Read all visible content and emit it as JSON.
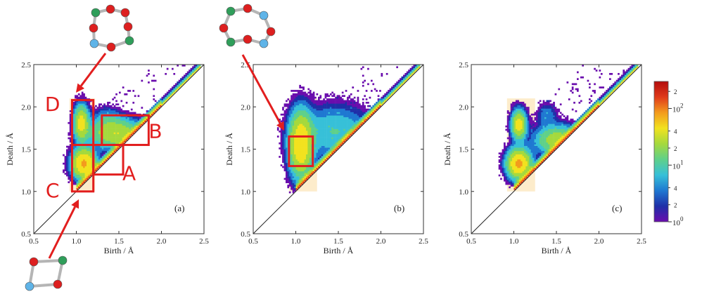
{
  "chart_data": [
    {
      "type": "heatmap",
      "panel_label": "(a)",
      "xlabel": "Birth / Å",
      "ylabel": "Death / Å",
      "xlim": [
        0.5,
        2.5
      ],
      "ylim": [
        0.5,
        2.5
      ],
      "xticks": [
        "0.5",
        "1.0",
        "1.5",
        "2.0",
        "2.5"
      ],
      "yticks": [
        "0.5",
        "1.0",
        "1.5",
        "2.0",
        "2.5"
      ],
      "diagonal": true,
      "shaded_band": {
        "x": [
          0.92,
          1.22
        ],
        "y": [
          1.0,
          2.1
        ]
      },
      "clusters": [
        {
          "x": 1.05,
          "y": 1.8,
          "sx": 0.05,
          "sy": 0.12,
          "peak": 40
        },
        {
          "x": 1.08,
          "y": 1.32,
          "sx": 0.08,
          "sy": 0.1,
          "peak": 60
        },
        {
          "x": 1.45,
          "y": 1.68,
          "sx": 0.18,
          "sy": 0.1,
          "peak": 30
        },
        {
          "x": 1.35,
          "y": 1.85,
          "sx": 0.1,
          "sy": 0.08,
          "peak": 6
        }
      ],
      "region_boxes": [
        {
          "label": "D",
          "x": [
            0.95,
            1.2
          ],
          "y": [
            1.55,
            2.08
          ],
          "label_x": 0.72,
          "label_y": 2.02
        },
        {
          "label": "B",
          "x": [
            1.3,
            1.85
          ],
          "y": [
            1.55,
            1.9
          ],
          "label_x": 1.93,
          "label_y": 1.7
        },
        {
          "label": "A",
          "x": [
            1.2,
            1.55
          ],
          "y": [
            1.2,
            1.55
          ],
          "label_x": 1.62,
          "label_y": 1.2
        },
        {
          "label": "C",
          "x": [
            0.95,
            1.2
          ],
          "y": [
            1.0,
            1.55
          ],
          "label_x": 0.72,
          "label_y": 1.0
        }
      ]
    },
    {
      "type": "heatmap",
      "panel_label": "(b)",
      "xlabel": "Birth / Å",
      "ylabel": "Death / Å",
      "xlim": [
        0.5,
        2.5
      ],
      "ylim": [
        0.5,
        2.5
      ],
      "xticks": [
        "0.5",
        "1.0",
        "1.5",
        "2.0",
        "2.5"
      ],
      "yticks": [
        "0.5",
        "1.0",
        "1.5",
        "2.0",
        "2.5"
      ],
      "diagonal": true,
      "shaded_band": {
        "x": [
          0.92,
          1.25
        ],
        "y": [
          1.0,
          2.1
        ]
      },
      "clusters": [
        {
          "x": 1.05,
          "y": 1.55,
          "sx": 0.08,
          "sy": 0.22,
          "peak": 50
        },
        {
          "x": 1.45,
          "y": 1.7,
          "sx": 0.25,
          "sy": 0.18,
          "peak": 10
        }
      ],
      "region_boxes": [
        {
          "label": "",
          "x": [
            0.92,
            1.2
          ],
          "y": [
            1.3,
            1.65
          ]
        }
      ]
    },
    {
      "type": "heatmap",
      "panel_label": "(c)",
      "xlabel": "Birth / Å",
      "ylabel": "Death / Å",
      "xlim": [
        0.5,
        2.5
      ],
      "ylim": [
        0.5,
        2.5
      ],
      "xticks": [
        "0.5",
        "1.0",
        "1.5",
        "2.0",
        "2.5"
      ],
      "yticks": [
        "0.5",
        "1.0",
        "1.5",
        "2.0",
        "2.5"
      ],
      "diagonal": true,
      "shaded_band": {
        "x": [
          0.92,
          1.25
        ],
        "y": [
          1.0,
          2.1
        ]
      },
      "clusters": [
        {
          "x": 1.05,
          "y": 1.78,
          "sx": 0.05,
          "sy": 0.1,
          "peak": 40
        },
        {
          "x": 1.05,
          "y": 1.32,
          "sx": 0.08,
          "sy": 0.1,
          "peak": 60
        },
        {
          "x": 1.5,
          "y": 1.6,
          "sx": 0.15,
          "sy": 0.1,
          "peak": 25
        },
        {
          "x": 1.38,
          "y": 1.9,
          "sx": 0.07,
          "sy": 0.08,
          "peak": 5
        }
      ],
      "region_boxes": []
    }
  ],
  "colorbar": {
    "scale": "log",
    "range": [
      1,
      300
    ],
    "major_labels": [
      "10^0",
      "10^1",
      "10^2"
    ],
    "minor_labels": [
      "2",
      "4",
      "2",
      "4",
      "2"
    ],
    "colors": [
      "#6a0dad",
      "#1f2fa8",
      "#1f78d1",
      "#37c0d8",
      "#5fd08a",
      "#a5d93d",
      "#f2e21f",
      "#f39b1d",
      "#e03a1a",
      "#b30d0d"
    ]
  },
  "molecule_colors": {
    "red": "#dd1f1f",
    "green": "#2f9e5a",
    "blue": "#5fb4e8",
    "bond": "#b5b5b5"
  },
  "annotation_color": "#e21e1e"
}
